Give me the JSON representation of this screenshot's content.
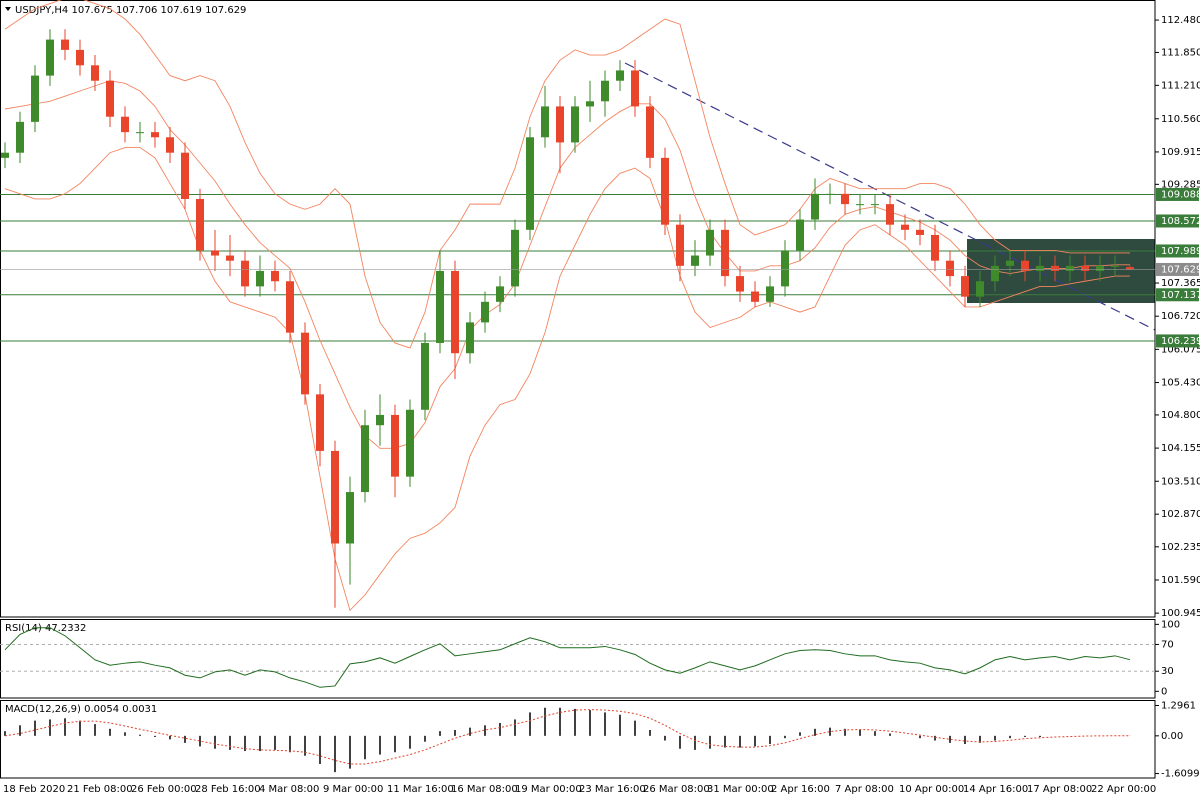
{
  "chart_data": [
    {
      "type": "candlestick",
      "title": "USDJPY,H4  107.675 107.706 107.619 107.629",
      "up_color": "#3f8a2a",
      "down_color": "#e8452c",
      "x_labels": [
        "18 Feb 2020",
        "21 Feb 08:00",
        "26 Feb 00:00",
        "28 Feb 16:00",
        "4 Mar 08:00",
        "9 Mar 00:00",
        "11 Mar 16:00",
        "16 Mar 08:00",
        "19 Mar 00:00",
        "23 Mar 16:00",
        "26 Mar 08:00",
        "31 Mar 00:00",
        "2 Apr 16:00",
        "7 Apr 08:00",
        "10 Apr 00:00",
        "14 Apr 16:00",
        "17 Apr 08:00",
        "22 Apr 00:00"
      ],
      "open": [
        109.8,
        109.9,
        110.5,
        111.4,
        112.1,
        111.9,
        111.6,
        111.3,
        110.6,
        110.3,
        110.3,
        110.2,
        109.9,
        109.0,
        108.0,
        107.9,
        107.8,
        107.3,
        107.6,
        107.4,
        106.4,
        105.2,
        104.1,
        102.3,
        103.3,
        104.6,
        104.8,
        103.6,
        104.9,
        106.2,
        107.6,
        106.0,
        106.6,
        107.0,
        107.3,
        108.4,
        110.2,
        110.8,
        110.1,
        110.8,
        110.9,
        111.3,
        111.5,
        110.8,
        109.8,
        108.5,
        107.7,
        107.9,
        108.4,
        107.5,
        107.2,
        107.0,
        107.3,
        108.0,
        108.6,
        109.1,
        109.1,
        108.9,
        108.9,
        108.9,
        108.5,
        108.4,
        108.3,
        107.8,
        107.5,
        107.1,
        107.4,
        107.7,
        107.8,
        107.6,
        107.7,
        107.6,
        107.7,
        107.6,
        107.7,
        107.675
      ],
      "high": [
        110.1,
        110.7,
        111.6,
        112.3,
        112.3,
        112.1,
        111.8,
        111.5,
        110.8,
        110.5,
        110.5,
        110.4,
        110.1,
        109.2,
        108.4,
        108.3,
        108.0,
        107.9,
        107.8,
        107.6,
        106.6,
        105.4,
        104.3,
        103.6,
        104.9,
        105.2,
        105.0,
        105.1,
        106.4,
        108.0,
        107.8,
        106.8,
        107.2,
        107.5,
        108.6,
        110.4,
        111.2,
        111.0,
        111.0,
        111.3,
        111.5,
        111.7,
        111.7,
        111.0,
        110.0,
        108.7,
        108.2,
        108.6,
        108.6,
        107.7,
        107.4,
        107.5,
        108.2,
        108.8,
        109.4,
        109.3,
        109.3,
        109.1,
        109.1,
        109.1,
        108.7,
        108.6,
        108.5,
        108.0,
        107.7,
        107.6,
        107.9,
        108.0,
        108.0,
        107.9,
        107.9,
        107.9,
        107.9,
        107.9,
        107.9,
        107.706
      ],
      "low": [
        109.6,
        109.7,
        110.3,
        111.2,
        111.7,
        111.4,
        111.1,
        110.4,
        110.1,
        110.1,
        110.0,
        109.7,
        108.8,
        107.8,
        107.6,
        107.5,
        107.1,
        107.1,
        107.2,
        106.2,
        105.0,
        103.8,
        101.05,
        101.5,
        103.1,
        104.2,
        103.2,
        103.4,
        104.7,
        106.0,
        105.5,
        105.8,
        106.4,
        106.8,
        107.1,
        108.2,
        110.0,
        109.5,
        109.9,
        110.5,
        110.6,
        111.1,
        110.6,
        109.6,
        108.3,
        107.4,
        107.5,
        107.7,
        107.3,
        107.0,
        106.9,
        106.9,
        107.1,
        107.8,
        108.4,
        108.9,
        108.7,
        108.7,
        108.7,
        108.3,
        108.2,
        108.1,
        107.6,
        107.3,
        106.9,
        106.9,
        107.2,
        107.5,
        107.4,
        107.4,
        107.4,
        107.4,
        107.4,
        107.4,
        107.5,
        107.619
      ],
      "close": [
        109.9,
        110.5,
        111.4,
        112.1,
        111.9,
        111.6,
        111.3,
        110.6,
        110.3,
        110.3,
        110.2,
        109.9,
        109.0,
        108.0,
        107.9,
        107.8,
        107.3,
        107.6,
        107.4,
        106.4,
        105.2,
        104.1,
        102.3,
        103.3,
        104.6,
        104.8,
        103.6,
        104.9,
        106.2,
        107.6,
        106.0,
        106.6,
        107.0,
        107.3,
        108.4,
        110.2,
        110.8,
        110.1,
        110.8,
        110.9,
        111.3,
        111.5,
        110.8,
        109.8,
        108.5,
        107.7,
        107.9,
        108.4,
        107.5,
        107.2,
        107.0,
        107.3,
        108.0,
        108.6,
        109.1,
        109.1,
        108.9,
        108.9,
        108.9,
        108.5,
        108.4,
        108.3,
        107.8,
        107.5,
        107.1,
        107.4,
        107.7,
        107.8,
        107.6,
        107.7,
        107.6,
        107.7,
        107.6,
        107.7,
        107.7,
        107.629
      ],
      "bands": {
        "color": "#f4845f",
        "upper": [
          112.3,
          112.5,
          112.7,
          112.8,
          112.9,
          112.9,
          112.8,
          112.7,
          112.5,
          112.2,
          111.8,
          111.4,
          111.3,
          111.4,
          111.3,
          110.8,
          110.1,
          109.5,
          109.1,
          108.9,
          108.8,
          108.9,
          109.2,
          108.9,
          107.5,
          106.6,
          106.2,
          106.1,
          106.8,
          108.0,
          108.4,
          108.9,
          108.9,
          108.9,
          109.6,
          110.6,
          111.3,
          111.7,
          111.9,
          111.8,
          111.8,
          111.9,
          112.1,
          112.3,
          112.5,
          112.4,
          111.3,
          110.2,
          109.3,
          108.5,
          108.3,
          108.4,
          108.5,
          108.8,
          109.2,
          109.4,
          109.3,
          109.2,
          109.2,
          109.2,
          109.2,
          109.3,
          109.3,
          109.2,
          108.9,
          108.5,
          108.2,
          108.0,
          108.0,
          108.0,
          108.0,
          107.95,
          107.95,
          107.95,
          107.95,
          107.95
        ],
        "middle": [
          110.75,
          110.8,
          110.85,
          110.9,
          111.0,
          111.1,
          111.2,
          111.3,
          111.25,
          111.1,
          110.8,
          110.35,
          110.05,
          109.7,
          109.35,
          108.9,
          108.5,
          108.15,
          107.9,
          107.65,
          107.0,
          106.25,
          105.6,
          104.95,
          104.4,
          104.15,
          104.15,
          104.25,
          104.65,
          105.35,
          105.7,
          106.45,
          106.75,
          106.95,
          107.35,
          108.1,
          108.85,
          109.6,
          110.0,
          110.25,
          110.5,
          110.7,
          110.85,
          110.85,
          110.55,
          109.95,
          109.05,
          108.35,
          107.95,
          107.6,
          107.6,
          107.7,
          107.7,
          107.8,
          108.05,
          108.45,
          108.7,
          108.8,
          108.85,
          108.75,
          108.65,
          108.55,
          108.4,
          108.2,
          107.9,
          107.7,
          107.6,
          107.55,
          107.6,
          107.65,
          107.65,
          107.65,
          107.7,
          107.7,
          107.72,
          107.72
        ],
        "lower": [
          109.2,
          109.1,
          109.0,
          109.0,
          109.1,
          109.3,
          109.6,
          109.9,
          110.0,
          110.0,
          109.8,
          109.3,
          108.8,
          108.0,
          107.4,
          107.0,
          106.9,
          106.8,
          106.7,
          106.4,
          105.2,
          103.6,
          102.0,
          101.0,
          101.3,
          101.7,
          102.1,
          102.4,
          102.5,
          102.7,
          103.0,
          104.0,
          104.6,
          105.0,
          105.1,
          105.6,
          106.4,
          107.5,
          108.1,
          108.7,
          109.2,
          109.5,
          109.6,
          109.4,
          108.6,
          107.5,
          106.8,
          106.5,
          106.6,
          106.7,
          106.9,
          107.0,
          106.9,
          106.8,
          106.9,
          107.5,
          108.1,
          108.4,
          108.5,
          108.3,
          108.1,
          107.8,
          107.5,
          107.2,
          106.9,
          106.9,
          107.0,
          107.1,
          107.2,
          107.3,
          107.3,
          107.35,
          107.4,
          107.45,
          107.5,
          107.5
        ]
      },
      "levels": {
        "color": "#3a7d3a",
        "values": [
          109.088,
          108.572,
          107.989,
          107.137,
          106.239
        ]
      },
      "ylim": [
        100.87,
        112.87
      ],
      "yticks": [
        {
          "value": 112.48,
          "label": "112.480"
        },
        {
          "value": 111.85,
          "label": "111.850"
        },
        {
          "value": 111.21,
          "label": "111.210"
        },
        {
          "value": 110.56,
          "label": "110.560"
        },
        109.915,
        109.285,
        107.365,
        {
          "value": 106.72,
          "label": "106.720"
        },
        106.075,
        {
          "value": 105.43,
          "label": "105.430"
        },
        {
          "value": 104.8,
          "label": "104.800"
        },
        104.155,
        {
          "value": 103.51,
          "label": "103.510"
        },
        {
          "value": 102.87,
          "label": "102.870"
        },
        102.235,
        {
          "value": 101.59,
          "label": "101.590"
        },
        100.945
      ]
    },
    {
      "type": "rsi",
      "title": "RSI(14) 47.2332",
      "color": "#1f6b1f",
      "values": [
        62,
        85,
        95,
        95,
        83,
        65,
        47,
        39,
        42,
        44,
        39,
        35,
        24,
        20,
        29,
        32,
        24,
        32,
        29,
        20,
        14,
        6,
        8,
        41,
        44,
        50,
        42,
        52,
        62,
        71,
        53,
        56,
        59,
        62,
        71,
        80,
        74,
        65,
        65,
        65,
        67,
        62,
        55,
        42,
        32,
        27,
        35,
        44,
        38,
        32,
        38,
        47,
        56,
        61,
        62,
        61,
        56,
        53,
        53,
        47,
        44,
        42,
        35,
        32,
        26,
        35,
        47,
        52,
        47,
        50,
        52,
        47,
        52,
        50,
        53,
        47.2332
      ],
      "levels": [
        70,
        30
      ],
      "ylim": [
        -10,
        108
      ],
      "yticks": [
        100,
        70,
        30,
        0
      ]
    },
    {
      "type": "macd",
      "title": "MACD(12,26,9) 0.0054 0.0031",
      "histogram": {
        "color": "#000000",
        "values": [
          0.2,
          0.45,
          0.65,
          0.7,
          0.75,
          0.65,
          0.5,
          0.3,
          0.15,
          0.05,
          -0.05,
          -0.15,
          -0.3,
          -0.45,
          -0.55,
          -0.6,
          -0.65,
          -0.65,
          -0.6,
          -0.7,
          -0.85,
          -1.2,
          -1.55,
          -1.4,
          -1.0,
          -0.8,
          -0.7,
          -0.55,
          -0.25,
          0.2,
          0.25,
          0.35,
          0.45,
          0.55,
          0.7,
          1.0,
          1.2,
          1.2,
          1.15,
          1.1,
          1.0,
          0.9,
          0.65,
          0.25,
          -0.2,
          -0.55,
          -0.6,
          -0.55,
          -0.5,
          -0.5,
          -0.45,
          -0.35,
          -0.1,
          0.15,
          0.3,
          0.35,
          0.3,
          0.25,
          0.2,
          0.1,
          0.0,
          -0.1,
          -0.2,
          -0.3,
          -0.35,
          -0.3,
          -0.2,
          -0.1,
          -0.05,
          -0.05,
          0.0,
          0.0,
          0.0,
          0.0,
          0.01,
          0.0054
        ]
      },
      "signal": {
        "color": "#e0442a",
        "values": [
          0.0,
          0.1,
          0.25,
          0.4,
          0.55,
          0.62,
          0.63,
          0.55,
          0.42,
          0.28,
          0.15,
          0.02,
          -0.1,
          -0.22,
          -0.35,
          -0.45,
          -0.55,
          -0.6,
          -0.62,
          -0.64,
          -0.7,
          -0.85,
          -1.05,
          -1.2,
          -1.2,
          -1.1,
          -0.95,
          -0.8,
          -0.6,
          -0.35,
          -0.1,
          0.1,
          0.25,
          0.35,
          0.5,
          0.65,
          0.85,
          1.0,
          1.1,
          1.12,
          1.1,
          1.05,
          0.95,
          0.75,
          0.45,
          0.1,
          -0.2,
          -0.38,
          -0.45,
          -0.48,
          -0.48,
          -0.42,
          -0.3,
          -0.12,
          0.05,
          0.18,
          0.25,
          0.27,
          0.25,
          0.2,
          0.12,
          0.03,
          -0.06,
          -0.15,
          -0.22,
          -0.26,
          -0.24,
          -0.19,
          -0.12,
          -0.08,
          -0.05,
          -0.03,
          -0.01,
          0.0,
          0.002,
          0.0031
        ]
      },
      "ylim": [
        -1.8,
        1.53
      ],
      "yticks": [
        1.2961,
        {
          "value": 0,
          "label": "0.00"
        },
        -1.6099
      ]
    }
  ]
}
